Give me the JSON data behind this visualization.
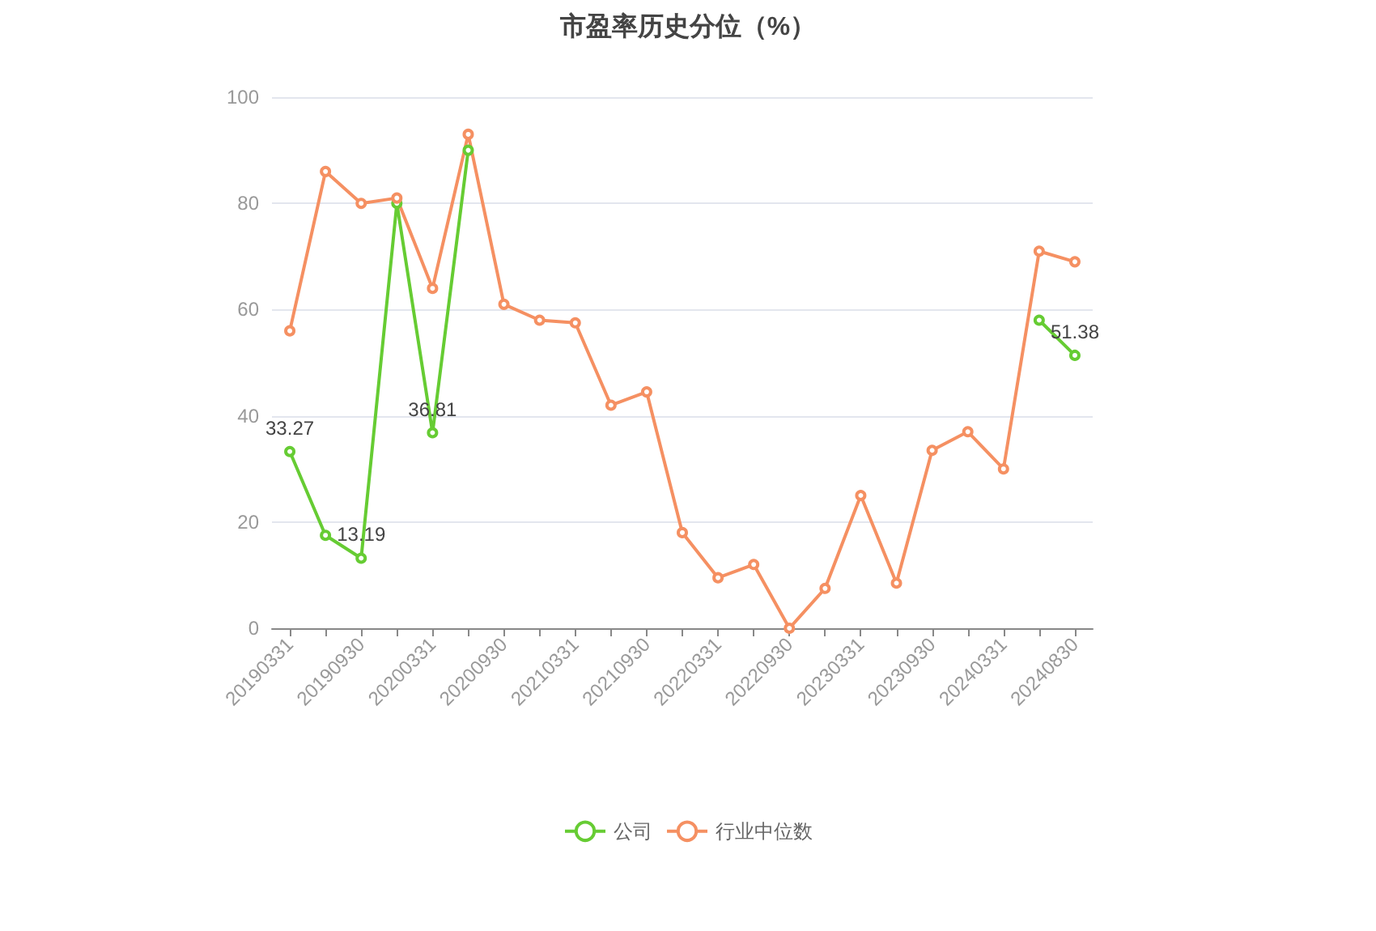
{
  "chart_data": {
    "type": "line",
    "title": "市盈率历史分位（%）",
    "categories": [
      "20190331",
      null,
      "20190930",
      null,
      "20200331",
      null,
      "20200930",
      null,
      "20210331",
      null,
      "20210930",
      null,
      "20220331",
      null,
      "20220930",
      null,
      "20230331",
      null,
      "20230930",
      null,
      "20240331",
      null,
      "20240830"
    ],
    "series": [
      {
        "name": "公司",
        "color": "#66cc33",
        "values": [
          33.27,
          17.5,
          13.19,
          80,
          36.81,
          90,
          null,
          null,
          null,
          null,
          null,
          null,
          null,
          null,
          null,
          null,
          null,
          null,
          null,
          null,
          null,
          58,
          51.38
        ],
        "value_labels": [
          "33.27",
          null,
          "13.19",
          null,
          "36.81",
          null,
          null,
          null,
          null,
          null,
          null,
          null,
          null,
          null,
          null,
          null,
          null,
          null,
          null,
          null,
          null,
          null,
          "51.38"
        ]
      },
      {
        "name": "行业中位数",
        "color": "#f59062",
        "values": [
          56,
          86,
          80,
          81,
          64,
          93,
          61,
          58,
          57.5,
          42,
          44.5,
          18,
          9.5,
          12,
          0,
          7.5,
          25,
          8.5,
          33.5,
          37,
          30,
          71,
          69
        ]
      }
    ],
    "ylim": [
      0,
      100
    ],
    "yticks": [
      0,
      20,
      40,
      60,
      80,
      100
    ],
    "grid": "y",
    "legend": "bottom",
    "marker": "circle",
    "line_style": "solid"
  }
}
